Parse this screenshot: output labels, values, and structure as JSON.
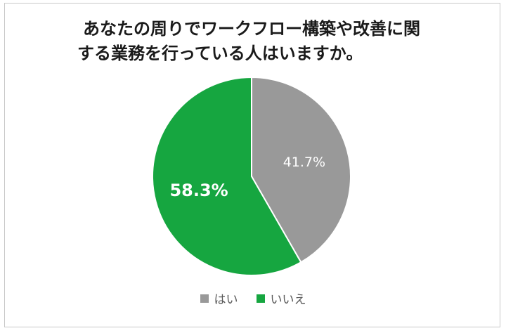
{
  "chart_data": {
    "type": "pie",
    "title_lines": [
      "あなたの周りでワークフロー構築や改善に関",
      "する業務を行っている人はいますか。"
    ],
    "slices": [
      {
        "label": "はい",
        "value": 41.7,
        "display": "41.7%",
        "color": "#999999"
      },
      {
        "label": "いいえ",
        "value": 58.3,
        "display": "58.3%",
        "color": "#16a640"
      }
    ],
    "start_angle": "12 o'clock",
    "direction": "clockwise",
    "legend_position": "bottom"
  }
}
